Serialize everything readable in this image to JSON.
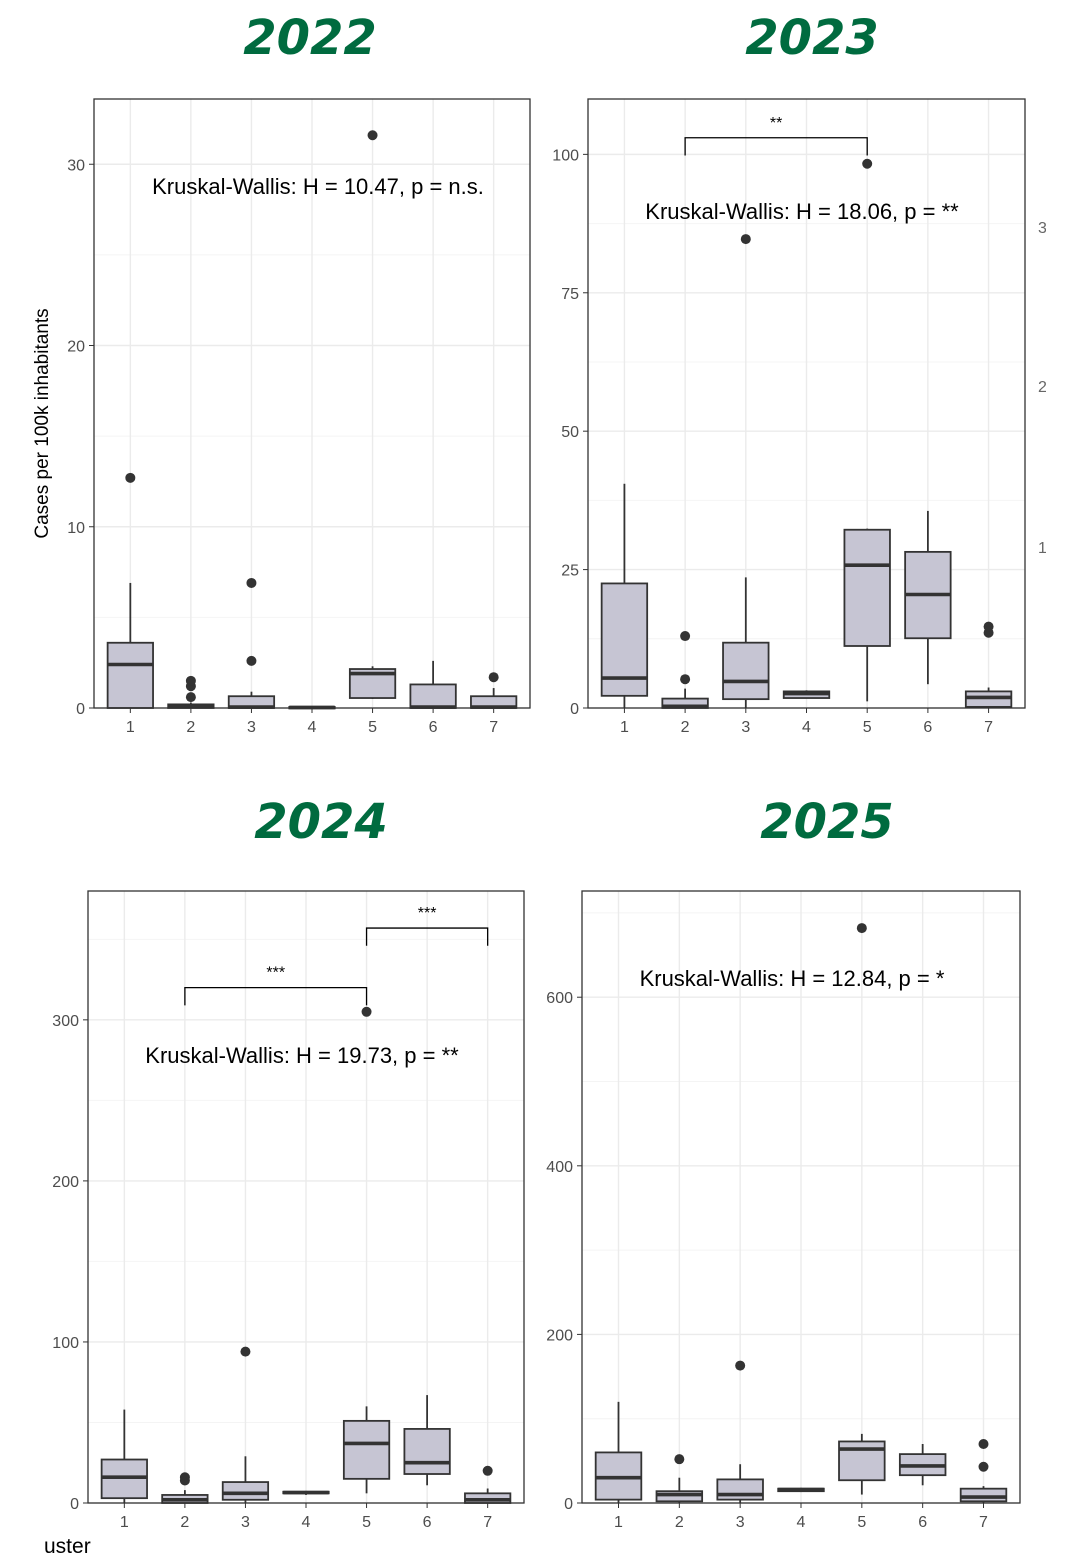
{
  "panels": [
    {
      "title": "2022"
    },
    {
      "title": "2023"
    },
    {
      "title": "2024"
    },
    {
      "title": "2025"
    }
  ],
  "fragments": {
    "xlabel_cut": "uster",
    "right_cut": [
      "3",
      "2",
      "1"
    ]
  },
  "colors": {
    "title": "#006B3F",
    "box_fill": "#C6C5D3",
    "box_stroke": "#333333",
    "grid": "#EBEBEB",
    "panel_border": "#333333"
  },
  "chart_data": [
    {
      "type": "box",
      "title": "2022",
      "ylabel": "Cases per 100k inhabitants",
      "categories": [
        "1",
        "2",
        "3",
        "4",
        "5",
        "6",
        "7"
      ],
      "ylim": [
        0,
        33.6
      ],
      "yticks": [
        0,
        10,
        20,
        30
      ],
      "annotation": "Kruskal-Wallis: H = 10.47, p = n.s.",
      "boxes": [
        {
          "cat": "1",
          "lo": 0.0,
          "q1": 0.0,
          "median": 2.4,
          "q3": 3.6,
          "hi": 6.9,
          "outliers": [
            12.7
          ]
        },
        {
          "cat": "2",
          "lo": 0.0,
          "q1": 0.0,
          "median": 0.1,
          "q3": 0.2,
          "hi": 0.3,
          "outliers": [
            0.6,
            1.2,
            1.5
          ]
        },
        {
          "cat": "3",
          "lo": 0.0,
          "q1": 0.0,
          "median": 0.05,
          "q3": 0.65,
          "hi": 0.9,
          "outliers": [
            2.6,
            6.9
          ]
        },
        {
          "cat": "4",
          "lo": 0.0,
          "q1": 0.0,
          "median": 0.03,
          "q3": 0.06,
          "hi": 0.08,
          "outliers": []
        },
        {
          "cat": "5",
          "lo": 0.5,
          "q1": 0.55,
          "median": 1.9,
          "q3": 2.15,
          "hi": 2.3,
          "outliers": [
            31.6
          ]
        },
        {
          "cat": "6",
          "lo": 0.0,
          "q1": 0.0,
          "median": 0.05,
          "q3": 1.3,
          "hi": 2.6,
          "outliers": []
        },
        {
          "cat": "7",
          "lo": 0.0,
          "q1": 0.0,
          "median": 0.05,
          "q3": 0.65,
          "hi": 1.1,
          "outliers": [
            1.7
          ]
        }
      ],
      "brackets": []
    },
    {
      "type": "box",
      "title": "2023",
      "categories": [
        "1",
        "2",
        "3",
        "4",
        "5",
        "6",
        "7"
      ],
      "ylim": [
        0,
        110
      ],
      "yticks": [
        0,
        25,
        50,
        75,
        100
      ],
      "annotation": "Kruskal-Wallis: H = 18.06, p = **",
      "boxes": [
        {
          "cat": "1",
          "lo": 0.0,
          "q1": 2.2,
          "median": 5.4,
          "q3": 22.5,
          "hi": 40.5,
          "outliers": []
        },
        {
          "cat": "2",
          "lo": 0.0,
          "q1": 0.0,
          "median": 0.3,
          "q3": 1.7,
          "hi": 3.5,
          "outliers": [
            5.2,
            13.0
          ]
        },
        {
          "cat": "3",
          "lo": 0.0,
          "q1": 1.6,
          "median": 4.8,
          "q3": 11.8,
          "hi": 23.6,
          "outliers": [
            84.7
          ]
        },
        {
          "cat": "4",
          "lo": 1.8,
          "q1": 1.8,
          "median": 2.6,
          "q3": 3.0,
          "hi": 3.2,
          "outliers": []
        },
        {
          "cat": "5",
          "lo": 1.2,
          "q1": 11.2,
          "median": 25.8,
          "q3": 32.2,
          "hi": 32.4,
          "outliers": [
            98.3
          ]
        },
        {
          "cat": "6",
          "lo": 4.3,
          "q1": 12.6,
          "median": 20.5,
          "q3": 28.2,
          "hi": 35.6,
          "outliers": []
        },
        {
          "cat": "7",
          "lo": 0.0,
          "q1": 0.2,
          "median": 1.9,
          "q3": 3.0,
          "hi": 3.7,
          "outliers": [
            13.6,
            14.7
          ]
        }
      ],
      "brackets": [
        {
          "from": "2",
          "to": "5",
          "y": 103,
          "drop": 3.2,
          "label": "**"
        }
      ]
    },
    {
      "type": "box",
      "title": "2024",
      "categories": [
        "1",
        "2",
        "3",
        "4",
        "5",
        "6",
        "7"
      ],
      "ylim": [
        0,
        380
      ],
      "yticks": [
        0,
        100,
        200,
        300
      ],
      "annotation": "Kruskal-Wallis: H = 19.73, p = **",
      "boxes": [
        {
          "cat": "1",
          "lo": 0.0,
          "q1": 3.0,
          "median": 16.0,
          "q3": 27.0,
          "hi": 58.0,
          "outliers": []
        },
        {
          "cat": "2",
          "lo": 0.0,
          "q1": 0.0,
          "median": 2.0,
          "q3": 5.0,
          "hi": 8.0,
          "outliers": [
            14.0,
            16.0
          ]
        },
        {
          "cat": "3",
          "lo": 0.0,
          "q1": 2.0,
          "median": 6.0,
          "q3": 13.0,
          "hi": 29.0,
          "outliers": [
            94.0
          ]
        },
        {
          "cat": "4",
          "lo": 5.0,
          "q1": 6.0,
          "median": 6.5,
          "q3": 7.0,
          "hi": 7.5,
          "outliers": []
        },
        {
          "cat": "5",
          "lo": 6.0,
          "q1": 15.0,
          "median": 37.0,
          "q3": 51.0,
          "hi": 60.0,
          "outliers": [
            305.0
          ]
        },
        {
          "cat": "6",
          "lo": 11.0,
          "q1": 18.0,
          "median": 25.0,
          "q3": 46.0,
          "hi": 67.0,
          "outliers": []
        },
        {
          "cat": "7",
          "lo": 0.0,
          "q1": 0.0,
          "median": 2.0,
          "q3": 6.0,
          "hi": 9.0,
          "outliers": [
            20.0
          ]
        }
      ],
      "brackets": [
        {
          "from": "2",
          "to": "5",
          "y": 320,
          "drop": 11,
          "label": "***"
        },
        {
          "from": "5",
          "to": "7",
          "y": 357,
          "drop": 11,
          "label": "***"
        }
      ]
    },
    {
      "type": "box",
      "title": "2025",
      "categories": [
        "1",
        "2",
        "3",
        "4",
        "5",
        "6",
        "7"
      ],
      "ylim": [
        0,
        726
      ],
      "yticks": [
        0,
        200,
        400,
        600
      ],
      "annotation": "Kruskal-Wallis: H = 12.84, p = *",
      "boxes": [
        {
          "cat": "1",
          "lo": 0.0,
          "q1": 4.0,
          "median": 30.0,
          "q3": 60.0,
          "hi": 120.0,
          "outliers": []
        },
        {
          "cat": "2",
          "lo": 0.0,
          "q1": 2.0,
          "median": 10.0,
          "q3": 14.0,
          "hi": 30.0,
          "outliers": [
            52.0
          ]
        },
        {
          "cat": "3",
          "lo": 0.0,
          "q1": 4.0,
          "median": 10.0,
          "q3": 28.0,
          "hi": 46.0,
          "outliers": [
            163.0
          ]
        },
        {
          "cat": "4",
          "lo": 13.0,
          "q1": 14.0,
          "median": 16.0,
          "q3": 17.0,
          "hi": 18.0,
          "outliers": []
        },
        {
          "cat": "5",
          "lo": 10.0,
          "q1": 27.0,
          "median": 64.0,
          "q3": 73.0,
          "hi": 82.0,
          "outliers": [
            682.0
          ]
        },
        {
          "cat": "6",
          "lo": 21.0,
          "q1": 33.0,
          "median": 44.0,
          "q3": 58.0,
          "hi": 70.0,
          "outliers": []
        },
        {
          "cat": "7",
          "lo": 0.0,
          "q1": 2.0,
          "median": 7.0,
          "q3": 17.0,
          "hi": 20.0,
          "outliers": [
            43.0,
            70.0
          ]
        }
      ],
      "brackets": []
    }
  ]
}
